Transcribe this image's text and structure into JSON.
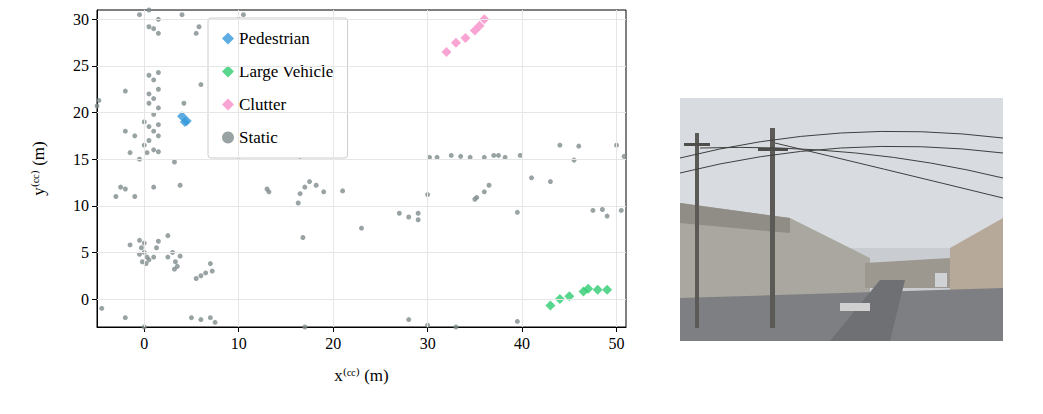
{
  "chart_data": {
    "type": "scatter",
    "xlabel": "x⁽ᶜᶜ⁾ (m)",
    "ylabel": "y⁽ᶜᶜ⁾ (m)",
    "xlim": [
      -5,
      51
    ],
    "ylim": [
      -3,
      31
    ],
    "xticks": [
      0,
      10,
      20,
      30,
      40,
      50
    ],
    "yticks": [
      0,
      5,
      10,
      15,
      20,
      25,
      30
    ],
    "grid": true,
    "legend": "upper center",
    "series": [
      {
        "name": "Pedestrian",
        "color": "#3498db",
        "marker": "diamond",
        "x": [
          4.0,
          4.3,
          4.5
        ],
        "y": [
          19.6,
          19.0,
          19.1
        ]
      },
      {
        "name": "Large Vehicle",
        "color": "#2ecc71",
        "marker": "diamond",
        "x": [
          43.0,
          44.0,
          45.0,
          46.5,
          47.0,
          48.0,
          49.0
        ],
        "y": [
          -0.7,
          0.0,
          0.3,
          0.8,
          1.1,
          1.0,
          1.0
        ]
      },
      {
        "name": "Clutter",
        "color": "#f78fc8",
        "marker": "diamond",
        "x": [
          32.0,
          33.0,
          34.0,
          35.0,
          35.5,
          36.0
        ],
        "y": [
          26.5,
          27.5,
          28.0,
          28.8,
          29.3,
          30.0
        ]
      },
      {
        "name": "Static",
        "color": "#7f8c8d",
        "marker": "circle",
        "x": [
          -0.5,
          0.0,
          -0.3,
          0.0,
          0.3,
          -0.2,
          0.2,
          0.5,
          -0.5,
          1.0,
          1.3,
          2.5,
          3.0,
          3.3,
          3.5,
          3.2,
          2.5,
          1.5,
          3.8,
          -1.5,
          0.5,
          1.0,
          1.5,
          0.5,
          1.5,
          1.0,
          0.5,
          1.5,
          1.0,
          0.0,
          0.5,
          1.5,
          1.0,
          1.5,
          0.5,
          0.0,
          1.0,
          1.5,
          0.3,
          -1.5,
          -1.0,
          -2.0,
          -2.0,
          -4.8,
          -5.0,
          -2.5,
          -3.0,
          -2.0,
          -1.0,
          1.0,
          -0.5,
          3.8,
          3.2,
          1.0,
          0.5,
          1.5,
          1.5,
          -0.5,
          0.5,
          4.0,
          10.0,
          10.5,
          5.5,
          5.8,
          6.0,
          4.2,
          5.5,
          6.0,
          6.5,
          7.0,
          7.2,
          5.0,
          6.0,
          7.0,
          7.5,
          0.0,
          -4.5,
          -2.0,
          13.0,
          13.2,
          16.5,
          16.3,
          17.0,
          17.5,
          18.2,
          19.0,
          16.8,
          23.0,
          27.0,
          28.0,
          29.0,
          29.0,
          30.0,
          30.2,
          31.0,
          32.5,
          33.5,
          34.5,
          36.0,
          37.0,
          37.5,
          38.2,
          39.8,
          36.5,
          36.0,
          35.2,
          35.0,
          39.5,
          41.0,
          43.0,
          46.0,
          47.5,
          48.5,
          49.0,
          50.5,
          50.8,
          50.0,
          16.5,
          16.2,
          16.8,
          10.0,
          21.0,
          17.0,
          28.0,
          30.0,
          33.0,
          39.5,
          45.5,
          44.0
        ],
        "y": [
          6.3,
          6.0,
          5.5,
          5.0,
          4.5,
          4.0,
          3.8,
          4.2,
          4.8,
          4.5,
          5.5,
          4.5,
          5.0,
          4.0,
          3.5,
          3.2,
          6.8,
          6.2,
          4.6,
          5.8,
          24.0,
          23.5,
          24.3,
          22.0,
          22.5,
          21.5,
          21.0,
          20.5,
          19.8,
          19.0,
          18.5,
          18.7,
          18.0,
          17.5,
          17.0,
          16.5,
          16.0,
          15.8,
          15.7,
          15.7,
          17.5,
          18.0,
          22.3,
          21.3,
          20.7,
          12.0,
          11.0,
          11.8,
          11.0,
          12.0,
          15.0,
          12.2,
          14.7,
          29.0,
          29.2,
          28.5,
          30.0,
          30.5,
          31.0,
          30.5,
          30.0,
          30.5,
          28.5,
          29.2,
          23.0,
          21.0,
          2.2,
          2.5,
          2.8,
          3.8,
          3.0,
          -2.0,
          -2.2,
          -2.0,
          -2.5,
          -3.0,
          -1.0,
          -2.0,
          11.8,
          11.5,
          11.3,
          10.3,
          12.0,
          12.6,
          12.2,
          11.5,
          6.6,
          7.6,
          9.2,
          8.8,
          9.2,
          8.5,
          11.2,
          15.2,
          15.2,
          15.4,
          15.3,
          15.2,
          15.2,
          15.4,
          15.4,
          15.2,
          15.4,
          12.2,
          11.5,
          10.9,
          10.7,
          9.3,
          13.0,
          12.6,
          16.4,
          9.5,
          9.6,
          8.9,
          9.5,
          15.3,
          16.5,
          15.3,
          16.3,
          17.3,
          15.3,
          11.6,
          -3.0,
          -2.2,
          -2.8,
          -3.0,
          -2.4,
          14.9,
          16.5
        ]
      }
    ]
  }
}
